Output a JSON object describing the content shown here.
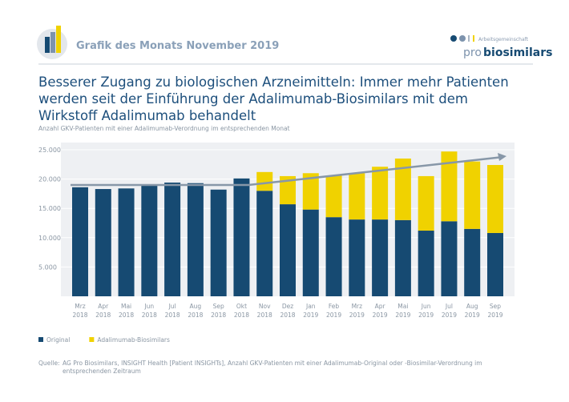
{
  "header": {
    "title": "Grafik des Monats November 2019",
    "logo_small": "Arbeitsgemeinschaft",
    "logo_pro": "pro",
    "logo_bio": "biosimilars"
  },
  "chart_data": {
    "type": "bar",
    "stacked": true,
    "title": "Besserer Zugang zu biologischen Arzneimitteln: Immer mehr Patienten werden seit der Einführung der Adalimumab-Biosimilars mit dem Wirkstoff Adalimumab behandelt",
    "y_label": "Anzahl GKV-Patienten mit einer Adalimumab-Verordnung im entsprechenden Monat",
    "categories": [
      "Mrz 2018",
      "Apr 2018",
      "Mai 2018",
      "Jun 2018",
      "Jul 2018",
      "Aug 2018",
      "Sep 2018",
      "Okt 2018",
      "Nov 2018",
      "Dez 2018",
      "Jan 2019",
      "Feb 2019",
      "Mrz 2019",
      "Apr 2019",
      "Mai 2019",
      "Jun 2019",
      "Jul 2019",
      "Aug 2019",
      "Sep 2019"
    ],
    "series": [
      {
        "name": "Original",
        "color": "#164a72",
        "values": [
          18600,
          18300,
          18400,
          18900,
          19400,
          19300,
          18200,
          20100,
          18000,
          15700,
          14800,
          13500,
          13100,
          13100,
          13000,
          11200,
          12800,
          11500,
          10800
        ]
      },
      {
        "name": "Adalimumab-Biosimilars",
        "color": "#f0d200",
        "values": [
          null,
          null,
          null,
          null,
          null,
          null,
          null,
          null,
          3200,
          4800,
          6200,
          7100,
          7900,
          9000,
          10500,
          9300,
          11900,
          11500,
          11600
        ]
      }
    ],
    "ylim": [
      0,
      25000
    ],
    "yticks": [
      {
        "value": 5000,
        "label": "5.000"
      },
      {
        "value": 10000,
        "label": "10.000"
      },
      {
        "value": 15000,
        "label": "15.000"
      },
      {
        "value": 20000,
        "label": "20.000"
      },
      {
        "value": 25000,
        "label": "25.000"
      }
    ]
  },
  "source": {
    "label": "Quelle:",
    "text": "AG Pro Biosimilars, INSIGHT Health [Patient INSIGHTs], Anzahl GKV-Patienten mit einer Adalimumab-Original oder -Biosimilar-Verordnung im entsprechenden Zeitraum"
  }
}
